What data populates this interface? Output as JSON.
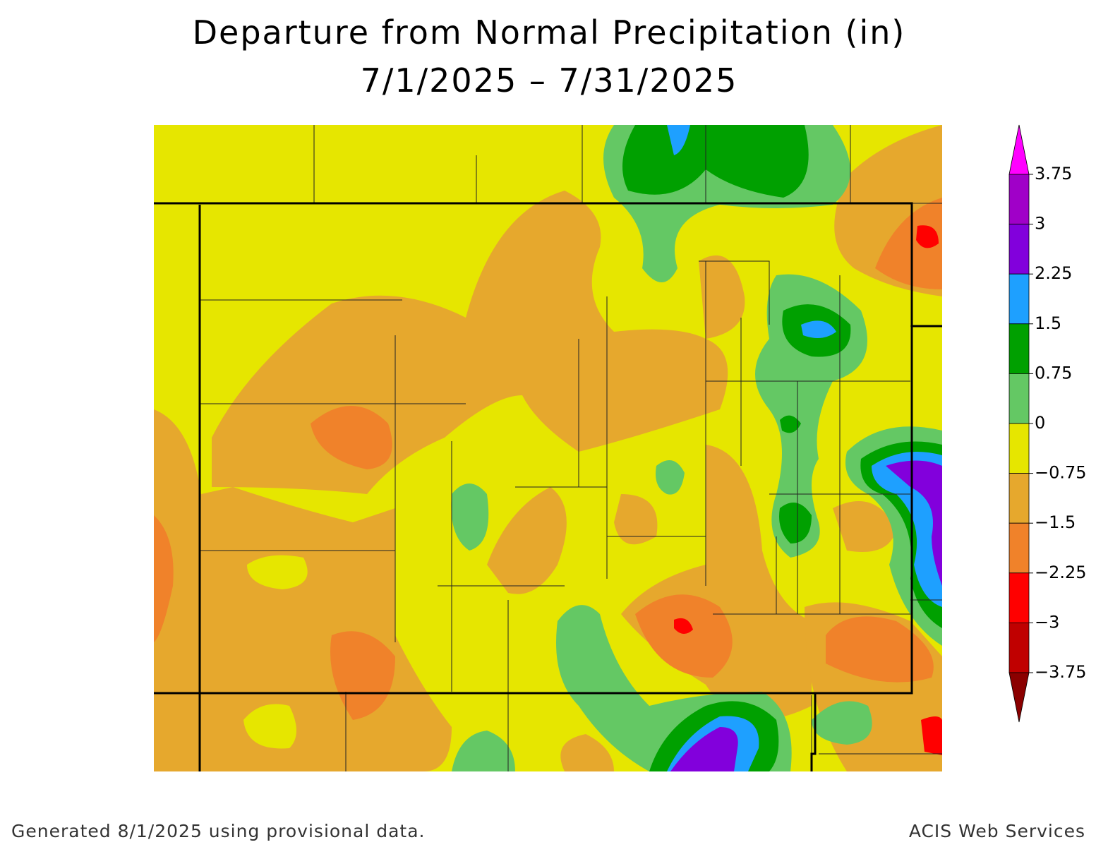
{
  "title": "Departure from Normal Precipitation (in)",
  "subtitle": "7/1/2025 – 7/31/2025",
  "legend": {
    "ticks": [
      3.75,
      3,
      2.25,
      1.5,
      0.75,
      0,
      {
        "value": -0.75,
        "label": "−0.75"
      },
      {
        "value": -1.5,
        "label": "−1.5"
      },
      {
        "value": -2.25,
        "label": "−2.25"
      },
      {
        "value": -3,
        "label": "−3"
      },
      {
        "value": -3.75,
        "label": "−3.75"
      }
    ],
    "colors": [
      "#a000c8",
      "#8200dc",
      "#1ea0ff",
      "#00a000",
      "#64c864",
      "#e6e600",
      "#e6a82d",
      "#f0822a",
      "#ff0000",
      "#c00000"
    ],
    "over_color": "#ff00ff",
    "under_color": "#8b0000"
  },
  "footer_left": "Generated 8/1/2025 using provisional data.",
  "footer_right": "ACIS Web Services"
}
